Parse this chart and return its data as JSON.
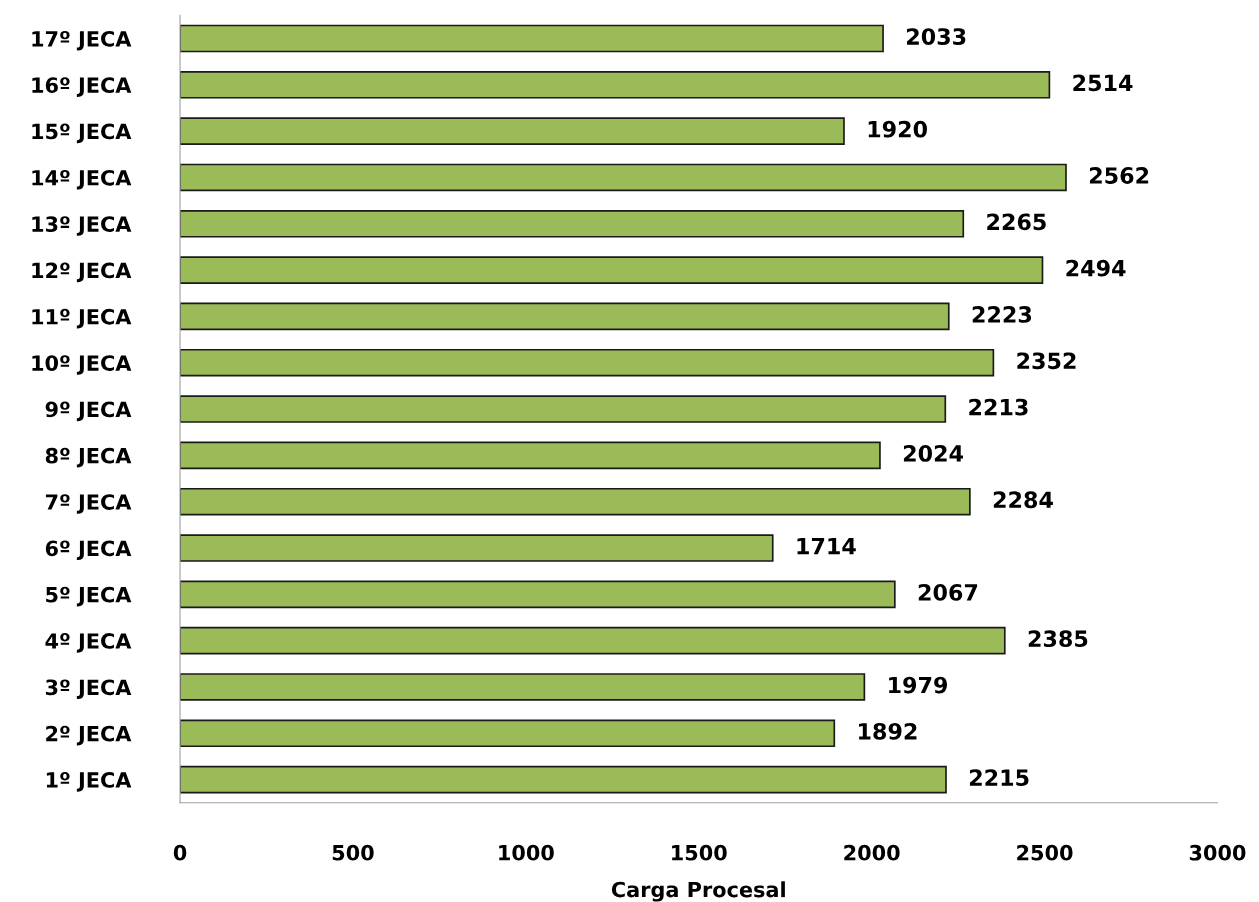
{
  "chart_data": {
    "type": "bar",
    "orientation": "horizontal",
    "xlabel": "Carga Procesal",
    "categories": [
      "17º JECA",
      "16º JECA",
      "15º JECA",
      "14º JECA",
      "13º JECA",
      "12º JECA",
      "11º JECA",
      "10º JECA",
      "9º JECA",
      "8º JECA",
      "7º JECA",
      "6º JECA",
      "5º JECA",
      "4º JECA",
      "3º JECA",
      "2º JECA",
      "1º JECA"
    ],
    "values": [
      2033,
      2514,
      1920,
      2562,
      2265,
      2494,
      2223,
      2352,
      2213,
      2024,
      2284,
      1714,
      2067,
      2385,
      1979,
      1892,
      2215
    ],
    "color": "#9bbb59",
    "xlim": [
      0,
      3000
    ],
    "xticks": [
      0,
      500,
      1000,
      1500,
      2000,
      2500,
      3000
    ],
    "grid": false,
    "data_labels": true,
    "legend": false
  }
}
